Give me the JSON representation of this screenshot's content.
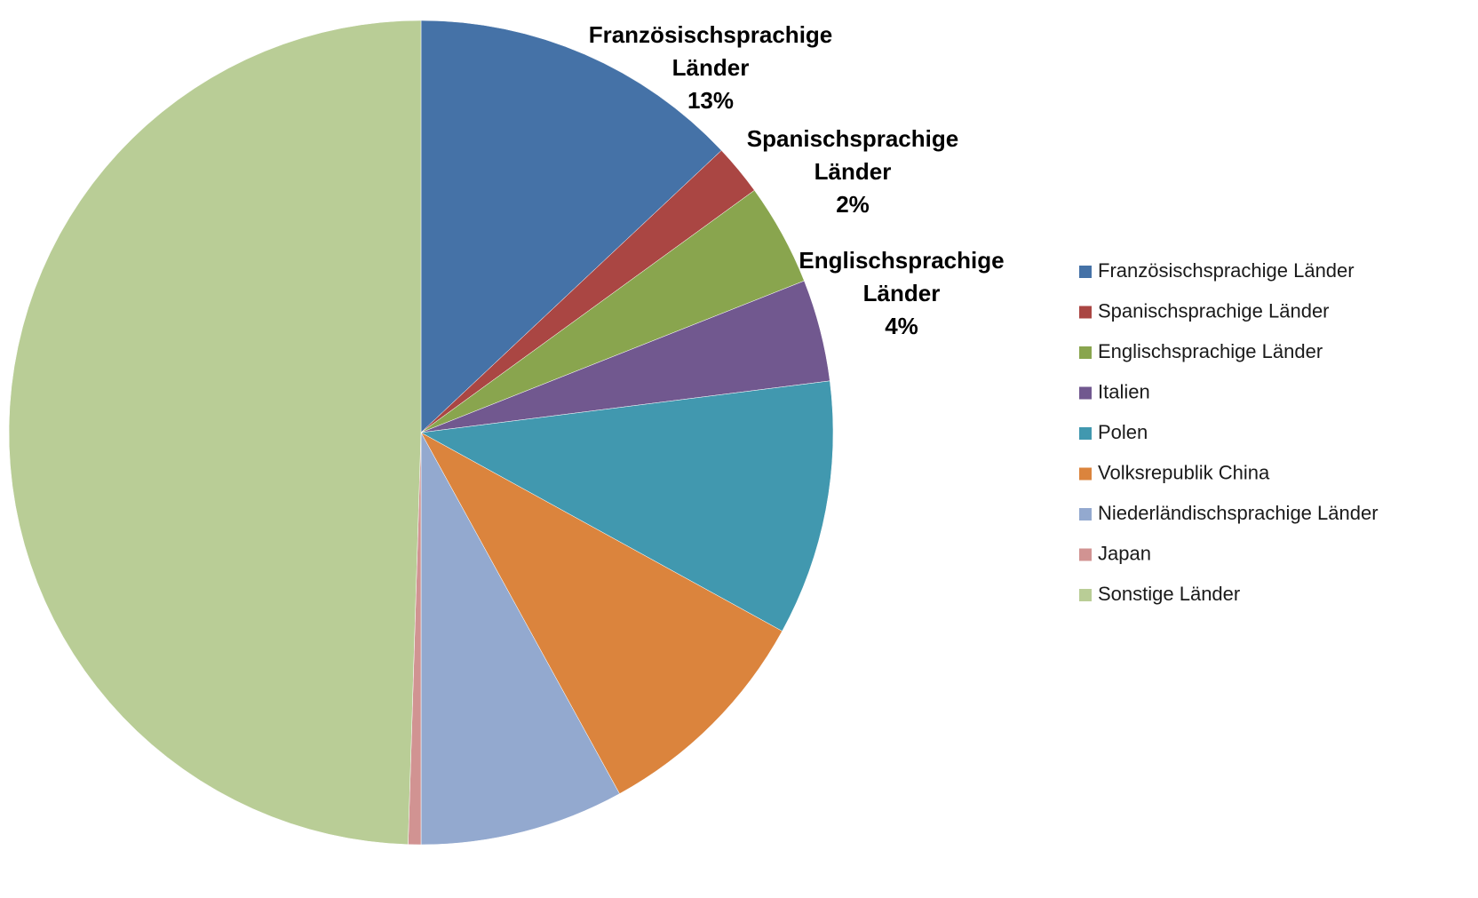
{
  "chart_data": {
    "type": "pie",
    "title": "",
    "start_angle_deg": 0,
    "direction": "clockwise",
    "legend_position": "right",
    "slices": [
      {
        "label": "Französischsprachige Länder",
        "value": 13,
        "color": "#4572A7",
        "data_label_lines": [
          "Französischsprachige",
          "Länder",
          "13%"
        ]
      },
      {
        "label": "Spanischsprachige Länder",
        "value": 2,
        "color": "#AA4643",
        "data_label_lines": [
          "Spanischsprachige",
          "Länder",
          "2%"
        ]
      },
      {
        "label": "Englischsprachige Länder",
        "value": 4,
        "color": "#89A54E",
        "data_label_lines": [
          "Englischsprachige",
          "Länder",
          "4%"
        ]
      },
      {
        "label": "Italien",
        "value": 4,
        "color": "#71588F",
        "data_label_lines": []
      },
      {
        "label": "Polen",
        "value": 10,
        "color": "#4198AF",
        "data_label_lines": []
      },
      {
        "label": "Volksrepublik China",
        "value": 9,
        "color": "#DB843D",
        "data_label_lines": []
      },
      {
        "label": "Niederländischsprachige Länder",
        "value": 8,
        "color": "#93A9CF",
        "data_label_lines": []
      },
      {
        "label": "Japan",
        "value": 0.5,
        "color": "#D19392",
        "data_label_lines": []
      },
      {
        "label": "Sonstige Länder",
        "value": 49.5,
        "color": "#B9CD96",
        "data_label_lines": []
      }
    ]
  }
}
